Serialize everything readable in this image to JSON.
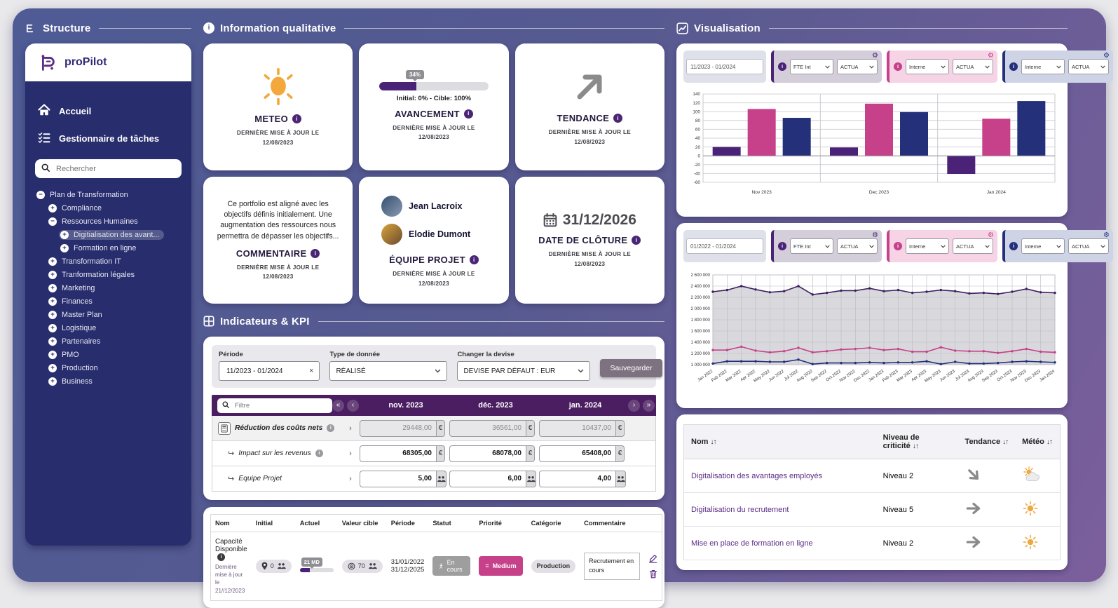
{
  "theme": {
    "gradient_start": "#4e5b95",
    "gradient_end": "#7b5f9c",
    "sidebar_bg": "#272d6d",
    "header_purple": "#4a1e61",
    "accent_purple": "#4a2277",
    "accent_pink": "#c6408a",
    "accent_navy": "#24307a"
  },
  "sidebar": {
    "section_title": "Structure",
    "logo_text": "proPilot",
    "nav": [
      {
        "label": "Accueil"
      },
      {
        "label": "Gestionnaire de tâches"
      }
    ],
    "search_placeholder": "Rechercher",
    "tree": [
      {
        "label": "Plan de Transformation",
        "depth": 0,
        "toggle": "minus",
        "selected": false
      },
      {
        "label": "Compliance",
        "depth": 1,
        "toggle": "plus",
        "selected": false
      },
      {
        "label": "Ressources Humaines",
        "depth": 1,
        "toggle": "minus",
        "selected": false
      },
      {
        "label": "Digitialisation des avant...",
        "depth": 2,
        "toggle": "plus",
        "selected": true
      },
      {
        "label": "Formation en ligne",
        "depth": 2,
        "toggle": "plus",
        "selected": false
      },
      {
        "label": "Transformation IT",
        "depth": 1,
        "toggle": "plus",
        "selected": false
      },
      {
        "label": "Tranformation légales",
        "depth": 1,
        "toggle": "plus",
        "selected": false
      },
      {
        "label": "Marketing",
        "depth": 1,
        "toggle": "plus",
        "selected": false
      },
      {
        "label": "Finances",
        "depth": 1,
        "toggle": "plus",
        "selected": false
      },
      {
        "label": "Master Plan",
        "depth": 1,
        "toggle": "plus",
        "selected": false
      },
      {
        "label": "Logistique",
        "depth": 1,
        "toggle": "plus",
        "selected": false
      },
      {
        "label": "Partenaires",
        "depth": 1,
        "toggle": "plus",
        "selected": false
      },
      {
        "label": "PMO",
        "depth": 1,
        "toggle": "plus",
        "selected": false
      },
      {
        "label": "Production",
        "depth": 1,
        "toggle": "plus",
        "selected": false
      },
      {
        "label": "Business",
        "depth": 1,
        "toggle": "plus",
        "selected": false
      }
    ]
  },
  "qualitative": {
    "section_title": "Information qualitative",
    "cards": {
      "meteo": {
        "title": "METEO",
        "updated": "DERNIÈRE MISE À JOUR LE 12/08/2023"
      },
      "avancement": {
        "title": "AVANCEMENT",
        "progress_pct": 34,
        "progress_label": "34%",
        "range_label": "Initial: 0% - Cible: 100%",
        "updated": "DERNIÈRE MISE À JOUR LE 12/08/2023"
      },
      "tendance": {
        "title": "TENDANCE",
        "updated": "DERNIÈRE MISE À JOUR LE 12/08/2023"
      },
      "commentaire": {
        "title": "COMMENTAIRE",
        "text": "Ce portfolio est aligné avec les objectifs définis initialement. Une augmentation des ressources nous permettra de dépasser les objectifs...",
        "updated": "DERNIÈRE MISE À JOUR LE 12/08/2023"
      },
      "equipe": {
        "title": "ÉQUIPE PROJET",
        "members": [
          {
            "name": "Jean Lacroix"
          },
          {
            "name": "Elodie Dumont"
          }
        ],
        "updated": "DERNIÈRE MISE À JOUR LE 12/08/2023"
      },
      "cloture": {
        "title": "DATE DE CLÔTURE",
        "date": "31/12/2026",
        "updated": "DERNIÈRE MISE À JOUR LE 12/08/2023"
      }
    }
  },
  "kpi": {
    "section_title": "Indicateurs & KPI",
    "filters": {
      "periode_label": "Période",
      "periode_value": "11/2023 - 01/2024",
      "clear_icon": "×",
      "type_label": "Type de donnée",
      "type_value": "RÉALISÉ",
      "devise_label": "Changer la devise",
      "devise_value": "DEVISE PAR DÉFAUT : EUR",
      "save_label": "Sauvegarder"
    },
    "table": {
      "filter_placeholder": "Filtre",
      "pagination": {
        "first": "«",
        "prev": "‹",
        "next": "›",
        "last": "»"
      },
      "months": [
        "nov. 2023",
        "déc. 2023",
        "jan. 2024"
      ],
      "rows": [
        {
          "label": "Réduction des coûts nets",
          "icon": "calculator",
          "info": true,
          "disabled": true,
          "unit": "€",
          "values": [
            "29448,00",
            "36561,00",
            "10437,00"
          ]
        },
        {
          "label": "Impact sur les revenus",
          "icon": "indent",
          "info": true,
          "disabled": false,
          "unit": "€",
          "values": [
            "68305,00",
            "68078,00",
            "65408,00"
          ]
        },
        {
          "label": "Équipe Projet",
          "icon": "indent",
          "info": false,
          "disabled": false,
          "unit": "people",
          "values": [
            "5,00",
            "6,00",
            "4,00"
          ]
        }
      ]
    },
    "indicators": {
      "headers": [
        "Nom",
        "Initial",
        "Actuel",
        "Valeur cible",
        "Période",
        "Statut",
        "Priorité",
        "Catégorie",
        "Commentaire"
      ],
      "row": {
        "name": "Capacité Disponible",
        "name_sub": "Dernière mise à jour le 21//12/2023",
        "initial": "0",
        "actual_tooltip": "21 MD",
        "target": "70",
        "period": [
          "31/01/2022",
          "31/12/2025"
        ],
        "status": "En cours",
        "priority": "Medium",
        "category": "Production",
        "comment": "Recrutement en cours"
      }
    }
  },
  "viz": {
    "section_title": "Visualisation",
    "panels": [
      {
        "date_range": "11/2023 - 01/2024",
        "series_filters": [
          {
            "name": "FTE Int",
            "mode": "ACTUA",
            "color": "#4a2277",
            "tint": "#d4cdda"
          },
          {
            "name": "Interne",
            "mode": "ACTUA",
            "color": "#c6408a",
            "tint": "#f6d4e6"
          },
          {
            "name": "Interne",
            "mode": "ACTUA",
            "color": "#24307a",
            "tint": "#ced3e6"
          }
        ]
      },
      {
        "date_range": "01/2022 - 01/2024",
        "series_filters": [
          {
            "name": "FTE Int",
            "mode": "ACTUA",
            "color": "#4a2277",
            "tint": "#d4cdda"
          },
          {
            "name": "Interne",
            "mode": "ACTUA",
            "color": "#c6408a",
            "tint": "#f6d4e6"
          },
          {
            "name": "Interne",
            "mode": "ACTUA",
            "color": "#24307a",
            "tint": "#ced3e6"
          }
        ]
      }
    ],
    "crit_table": {
      "sort_icon": "↓↑",
      "headers": [
        "Nom",
        "Niveau de criticité",
        "Tendance",
        "Météo"
      ],
      "rows": [
        {
          "name": "Digitalisation des avantages employés",
          "level": "Niveau 2",
          "trend": "down-right",
          "weather": "sun-cloud"
        },
        {
          "name": "Digitalisation du recrutement",
          "level": "Niveau 5",
          "trend": "right",
          "weather": "sun"
        },
        {
          "name": "Mise en place de formation en ligne",
          "level": "Niveau 2",
          "trend": "right",
          "weather": "sun"
        }
      ]
    }
  },
  "chart_data": [
    {
      "type": "bar",
      "categories": [
        "Nov 2023",
        "Dec 2023",
        "Jan 2024"
      ],
      "series": [
        {
          "name": "serie-violet",
          "color": "#4a2277",
          "values": [
            20,
            19,
            -41
          ]
        },
        {
          "name": "serie-rose",
          "color": "#c6408a",
          "values": [
            106,
            118,
            84
          ]
        },
        {
          "name": "serie-bleu",
          "color": "#24307a",
          "values": [
            86,
            99,
            124
          ]
        }
      ],
      "title": "",
      "xlabel": "",
      "ylabel": "",
      "ylim": [
        -60,
        140
      ],
      "ystep": 20,
      "grid": true,
      "legend": false
    },
    {
      "type": "line",
      "x": [
        "Jan 2022",
        "Feb 2022",
        "Mar 2022",
        "Apr 2022",
        "May 2022",
        "Jun 2022",
        "Jul 2022",
        "Aug 2022",
        "Sep 2022",
        "Oct 2022",
        "Nov 2022",
        "Dec 2022",
        "Jan 2023",
        "Feb 2023",
        "Mar 2023",
        "Apr 2023",
        "May 2023",
        "Jun 2023",
        "Jul 2023",
        "Aug 2023",
        "Sep 2023",
        "Oct 2023",
        "Nov 2023",
        "Dec 2023",
        "Jan 2024"
      ],
      "series": [
        {
          "name": "serie-violet",
          "color": "#3d2060",
          "area": true,
          "values": [
            2300000,
            2330000,
            2400000,
            2340000,
            2290000,
            2310000,
            2400000,
            2250000,
            2280000,
            2320000,
            2320000,
            2360000,
            2310000,
            2330000,
            2280000,
            2300000,
            2330000,
            2310000,
            2270000,
            2280000,
            2260000,
            2300000,
            2350000,
            2290000,
            2280000
          ]
        },
        {
          "name": "serie-rose",
          "color": "#c6408a",
          "area": false,
          "values": [
            1260000,
            1260000,
            1320000,
            1250000,
            1220000,
            1240000,
            1300000,
            1220000,
            1240000,
            1270000,
            1280000,
            1300000,
            1260000,
            1280000,
            1230000,
            1230000,
            1310000,
            1250000,
            1240000,
            1240000,
            1210000,
            1240000,
            1280000,
            1230000,
            1220000
          ]
        },
        {
          "name": "serie-bleu",
          "color": "#24307a",
          "area": false,
          "values": [
            1020000,
            1060000,
            1060000,
            1060000,
            1050000,
            1050000,
            1090000,
            1010000,
            1030000,
            1030000,
            1030000,
            1040000,
            1030000,
            1040000,
            1040000,
            1060000,
            1010000,
            1050000,
            1020000,
            1020000,
            1030000,
            1050000,
            1060000,
            1050000,
            1040000
          ]
        }
      ],
      "title": "",
      "xlabel": "",
      "ylabel": "",
      "ylim": [
        1000000,
        2600000
      ],
      "ystep": 200000,
      "grid": true,
      "legend": false
    }
  ]
}
